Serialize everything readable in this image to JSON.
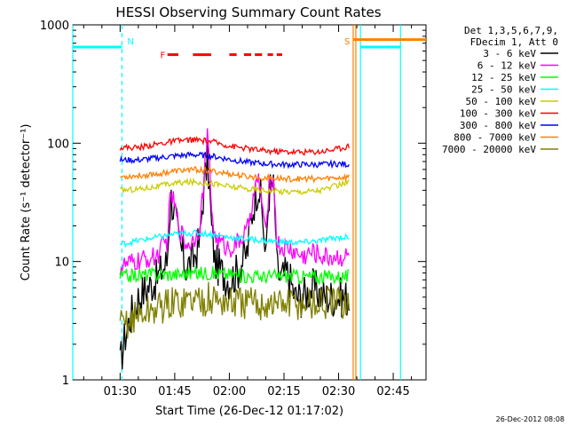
{
  "chart_data": {
    "type": "line",
    "title": "HESSI Observing Summary Count Rates",
    "xlabel": "Start Time (26-Dec-12 01:17:02)",
    "ylabel": "Count Rate (s⁻¹ detector⁻¹)",
    "yscale": "log",
    "ylim": [
      1,
      1000
    ],
    "xlim_minutes": [
      77,
      174
    ],
    "x_ticks": [
      {
        "label": "01:30",
        "min": 90
      },
      {
        "label": "01:45",
        "min": 105
      },
      {
        "label": "02:00",
        "min": 120
      },
      {
        "label": "02:15",
        "min": 135
      },
      {
        "label": "02:30",
        "min": 150
      },
      {
        "label": "02:45",
        "min": 165
      }
    ],
    "y_ticks": [
      {
        "label": "1",
        "value": 1
      },
      {
        "label": "10",
        "value": 10
      },
      {
        "label": "100",
        "value": 100
      },
      {
        "label": "1000",
        "value": 1000
      }
    ],
    "legend_header": [
      "Det 1,3,5,6,7,9,",
      "FDecim 1, Att 0"
    ],
    "legend_position": "top-right",
    "series": [
      {
        "name": "3 - 6 keV",
        "color": "#000000",
        "x": [
          90,
          95,
          100,
          103,
          104,
          106,
          108,
          110,
          112,
          113,
          114,
          115,
          116,
          118,
          120,
          122,
          125,
          128,
          130,
          131,
          132,
          133,
          134,
          136,
          138,
          140,
          143,
          146,
          150,
          153
        ],
        "y": [
          1.3,
          5,
          7,
          10,
          35,
          15,
          9,
          10,
          15,
          40,
          70,
          20,
          10,
          8,
          7,
          8,
          12,
          45,
          8,
          40,
          45,
          9,
          7,
          8,
          5,
          5,
          6,
          5,
          5,
          5
        ]
      },
      {
        "name": "6 - 12 keV",
        "color": "#ff00ff",
        "x": [
          90,
          95,
          100,
          103,
          104,
          106,
          108,
          110,
          112,
          113,
          114,
          115,
          116,
          118,
          120,
          122,
          125,
          128,
          130,
          131,
          132,
          133,
          134,
          136,
          138,
          140,
          143,
          146,
          150,
          153
        ],
        "y": [
          9,
          10,
          11,
          15,
          38,
          20,
          14,
          15,
          20,
          45,
          110,
          30,
          16,
          14,
          13,
          14,
          18,
          50,
          14,
          45,
          50,
          15,
          13,
          13,
          12,
          11,
          12,
          11,
          11,
          11
        ]
      },
      {
        "name": "12 - 25 keV",
        "color": "#00ff00",
        "x": [
          90,
          95,
          100,
          105,
          110,
          115,
          120,
          125,
          130,
          135,
          140,
          145,
          150,
          153
        ],
        "y": [
          7.5,
          7.7,
          7.8,
          7.8,
          8,
          8,
          7.8,
          7.5,
          7.5,
          7.6,
          7.5,
          7.4,
          7.5,
          7.5
        ]
      },
      {
        "name": "25 - 50 keV",
        "color": "#00ffff",
        "x": [
          90,
          95,
          100,
          105,
          110,
          115,
          120,
          125,
          130,
          135,
          140,
          145,
          150,
          153
        ],
        "y": [
          14,
          15,
          16,
          17,
          17.5,
          17,
          16,
          15.5,
          15,
          14.5,
          14.5,
          15,
          16,
          16
        ]
      },
      {
        "name": "50 - 100 keV",
        "color": "#cccc00",
        "x": [
          90,
          95,
          100,
          105,
          110,
          115,
          120,
          125,
          130,
          135,
          140,
          145,
          150,
          153
        ],
        "y": [
          40,
          41,
          43,
          46,
          47,
          46,
          43,
          41,
          40,
          39,
          39,
          40,
          44,
          48
        ]
      },
      {
        "name": "100 - 300 keV",
        "color": "#ff0000",
        "x": [
          90,
          95,
          100,
          105,
          110,
          115,
          120,
          125,
          130,
          135,
          140,
          145,
          150,
          153
        ],
        "y": [
          92,
          92,
          98,
          104,
          107,
          103,
          95,
          90,
          86,
          85,
          84,
          85,
          90,
          95
        ]
      },
      {
        "name": "300 - 800 keV",
        "color": "#0000ff",
        "x": [
          90,
          95,
          100,
          105,
          110,
          115,
          120,
          125,
          130,
          135,
          140,
          145,
          150,
          153
        ],
        "y": [
          72,
          72,
          75,
          78,
          80,
          78,
          73,
          69,
          67,
          66,
          66,
          66,
          67,
          66
        ]
      },
      {
        "name": "800 - 7000 keV",
        "color": "#ff8000",
        "x": [
          90,
          95,
          100,
          105,
          110,
          115,
          120,
          125,
          130,
          135,
          140,
          145,
          150,
          153
        ],
        "y": [
          52,
          53,
          55,
          58,
          60,
          58,
          55,
          52,
          51,
          50,
          50,
          50,
          51,
          52
        ]
      },
      {
        "name": "7000 - 20000 keV",
        "color": "#808000",
        "x": [
          90,
          95,
          100,
          105,
          110,
          115,
          120,
          125,
          130,
          135,
          140,
          145,
          150,
          153
        ],
        "y": [
          2.8,
          3.5,
          4,
          4.5,
          4.8,
          4.8,
          4.5,
          4.4,
          4.4,
          4.4,
          4.4,
          4.4,
          4.4,
          4.6
        ]
      }
    ],
    "annotations": [
      {
        "label": "N",
        "min": 90.5,
        "color": "#00ffff"
      },
      {
        "label": "S",
        "min": 154,
        "color": "#ff8000"
      },
      {
        "label": "F",
        "min": 101,
        "color": "#ff0000"
      }
    ],
    "night_segments": [
      {
        "start": 77,
        "end": 90.5,
        "value": 650
      },
      {
        "start": 156,
        "end": 167,
        "value": 650
      }
    ],
    "flare_segments": [
      {
        "start": 103,
        "end": 106
      },
      {
        "start": 110,
        "end": 115
      },
      {
        "start": 120,
        "end": 122
      },
      {
        "start": 124,
        "end": 126
      },
      {
        "start": 127,
        "end": 129
      },
      {
        "start": 130.5,
        "end": 132
      },
      {
        "start": 133,
        "end": 134.5
      }
    ],
    "saa_level": 750,
    "grid": false
  },
  "footer_timestamp": "26-Dec-2012 08:08"
}
